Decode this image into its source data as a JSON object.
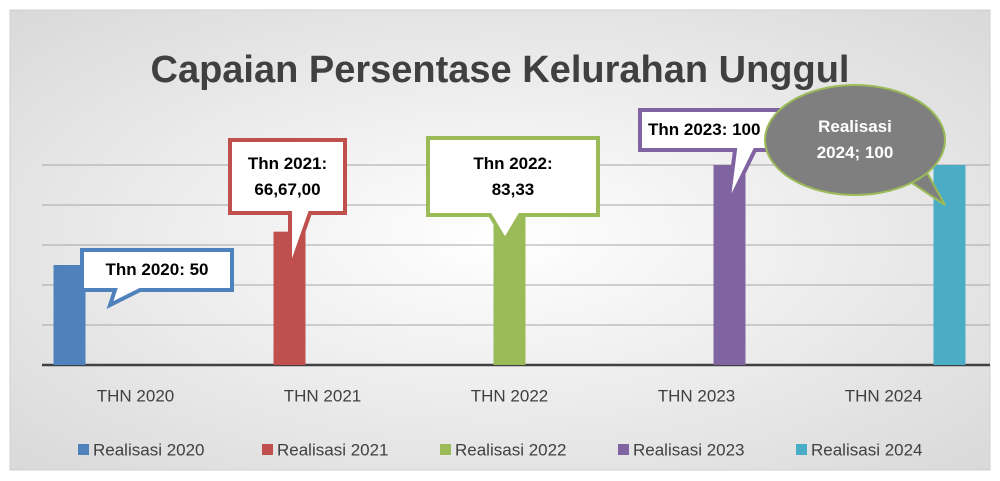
{
  "chart_data": {
    "type": "bar",
    "title": "Capaian Persentase Kelurahan Unggul",
    "categories": [
      "THN 2020",
      "THN 2021",
      "THN 2022",
      "THN 2023",
      "THN 2024"
    ],
    "series": [
      {
        "name": "Realisasi 2020",
        "color": "#4f81bd",
        "values": [
          50,
          null,
          null,
          null,
          null
        ],
        "value_labels": [
          "Thn 2020: 50",
          null,
          null,
          null,
          null
        ]
      },
      {
        "name": "Realisasi 2021",
        "color": "#c0504d",
        "values": [
          null,
          66.67,
          null,
          null,
          null
        ],
        "value_labels": [
          null,
          "Thn 2021: 66,67,00",
          null,
          null,
          null
        ]
      },
      {
        "name": "Realisasi 2022",
        "color": "#9bbb59",
        "values": [
          null,
          null,
          83.33,
          null,
          null
        ],
        "value_labels": [
          null,
          null,
          "Thn 2022: 83,33",
          null,
          null
        ]
      },
      {
        "name": "Realisasi 2023",
        "color": "#8064a2",
        "values": [
          null,
          null,
          null,
          100,
          null
        ],
        "value_labels": [
          null,
          null,
          null,
          "Thn 2023: 100",
          null
        ]
      },
      {
        "name": "Realisasi 2024",
        "color": "#4bacc6",
        "values": [
          null,
          null,
          null,
          null,
          100
        ],
        "value_labels": [
          null,
          null,
          null,
          null,
          "Realisasi 2024; 100"
        ]
      }
    ],
    "ylim": [
      0,
      100
    ],
    "yticks": [
      0,
      20,
      40,
      60,
      80,
      100
    ],
    "grid": true,
    "legend": "bottom"
  }
}
